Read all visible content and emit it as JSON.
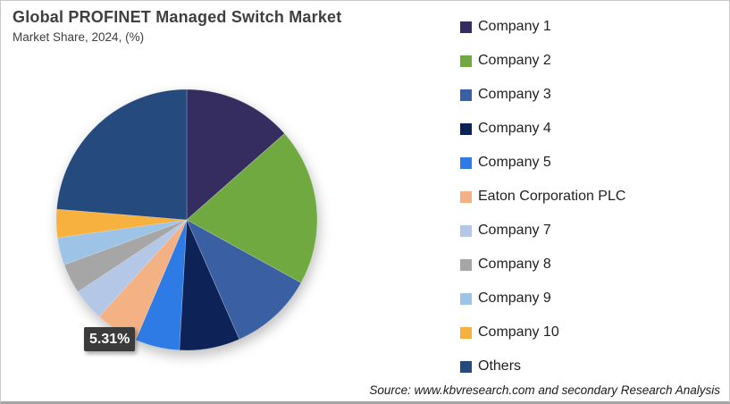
{
  "header": {
    "title": "Global PROFINET Managed Switch Market",
    "subtitle": "Market Share, 2024, (%)"
  },
  "chart_data": {
    "type": "pie",
    "title": "Global PROFINET Managed Switch Market",
    "subtitle": "Market Share, 2024, (%)",
    "direction": "clockwise",
    "start_angle_deg": 0,
    "legend_position": "right",
    "labels": [
      "Company 1",
      "Company 2",
      "Company 3",
      "Company 4",
      "Company 5",
      "Eaton Corporation PLC",
      "Company 7",
      "Company 8",
      "Company 9",
      "Company 10",
      "Others"
    ],
    "values": [
      13.5,
      19.5,
      10.4,
      7.5,
      5.5,
      5.31,
      4.0,
      3.7,
      3.4,
      3.5,
      23.69
    ],
    "colors": [
      "#352D5F",
      "#70A93F",
      "#3B5FA3",
      "#0D2357",
      "#2F7BE5",
      "#F4B183",
      "#B4C7E7",
      "#A6A6A6",
      "#9DC3E6",
      "#F6B13E",
      "#254A7D"
    ],
    "shown_value_labels": [
      {
        "label": "Eaton Corporation PLC",
        "text": "5.31%"
      }
    ]
  },
  "annotation": {
    "eaton_share_label": "5.31%"
  },
  "footer": {
    "source": "Source: www.kbvresearch.com and secondary Research Analysis"
  }
}
